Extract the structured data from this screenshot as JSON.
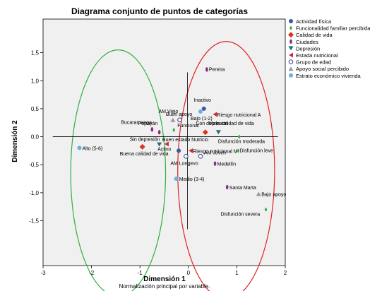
{
  "chart_data": {
    "type": "scatter",
    "title": "Diagrama conjunto de puntos de categorías",
    "xlabel": "Dimensión 1",
    "ylabel": "Dimensión 2",
    "note": "Normalización principal por variable.",
    "xlim": [
      -3,
      2
    ],
    "ylim": [
      -2.3,
      2.1
    ],
    "x_ticks": [
      "-3",
      "-2",
      "-1",
      "0",
      "1",
      "2"
    ],
    "y_ticks": [
      {
        "label": "1,5",
        "value": 1.5
      },
      {
        "label": "1,0",
        "value": 1.0
      },
      {
        "label": "0,5",
        "value": 0.5
      },
      {
        "label": "0,0",
        "value": 0.0
      },
      {
        "label": "-0,5",
        "value": -0.5
      },
      {
        "label": "-1,0",
        "value": -1.0
      },
      {
        "label": "-1,5",
        "value": -1.5
      }
    ],
    "legend_position": "right",
    "series": [
      {
        "name": "Actividad física",
        "marker": "circle",
        "color": "#3a5a9c",
        "points": [
          {
            "label": "Inactivo",
            "x": 0.32,
            "y": 0.5
          },
          {
            "label": "Activo",
            "x": -0.2,
            "y": -0.25
          }
        ]
      },
      {
        "name": "Funcionalidad familiar percibida",
        "marker": "diamond-small",
        "color": "#3aa040",
        "points": [
          {
            "label": "Funcional",
            "x": -0.3,
            "y": 0.12
          },
          {
            "label": "Disfunción moderada",
            "x": 1.05,
            "y": 0.0
          },
          {
            "label": "Disfunción leve",
            "x": 1.03,
            "y": -0.25
          },
          {
            "label": "Disfunción severa",
            "x": 1.6,
            "y": -1.3
          }
        ]
      },
      {
        "name": "Calidad de vida",
        "marker": "diamond",
        "color": "#e03020",
        "points": [
          {
            "label": "Buena calidad de vida",
            "x": -0.95,
            "y": -0.18
          },
          {
            "label": "Mala calidad de vida",
            "x": 0.35,
            "y": 0.08
          }
        ]
      },
      {
        "name": "Ciudades",
        "marker": "ellipse",
        "color": "#8a2a8a",
        "points": [
          {
            "label": "Pereira",
            "x": 0.38,
            "y": 1.2
          },
          {
            "label": "Bucaramanga",
            "x": -0.75,
            "y": 0.13
          },
          {
            "label": "Popayán",
            "x": -0.6,
            "y": 0.08
          },
          {
            "label": "Medellín",
            "x": 0.55,
            "y": -0.48
          },
          {
            "label": "Santa Marta",
            "x": 0.8,
            "y": -0.9
          }
        ]
      },
      {
        "name": "Depresión",
        "marker": "triangle-down",
        "color": "#1f6f7a",
        "points": [
          {
            "label": "Con depresión",
            "x": 0.62,
            "y": 0.08
          },
          {
            "label": "Sin depresión",
            "x": -0.6,
            "y": -0.14
          }
        ]
      },
      {
        "name": "Estada nutricional",
        "marker": "triangle-left",
        "color": "#d02838",
        "points": [
          {
            "label": "Riesgo nutricional A",
            "x": 0.55,
            "y": 0.4
          },
          {
            "label": "Buen estado Nutricio",
            "x": -0.45,
            "y": -0.13
          },
          {
            "label": "Riesgo nutricional M",
            "x": 0.05,
            "y": -0.25
          }
        ]
      },
      {
        "name": "Grupo de edad",
        "marker": "circle-open",
        "color": "#3a3a8a",
        "points": [
          {
            "label": "AM Viejo",
            "x": -0.18,
            "y": 0.3
          },
          {
            "label": "AM Joven",
            "x": 0.25,
            "y": -0.35
          },
          {
            "label": "AM Longevo",
            "x": -0.05,
            "y": -0.35
          }
        ]
      },
      {
        "name": "Apoyo social percibido",
        "marker": "triangle-up",
        "color": "#999999",
        "points": [
          {
            "label": "Buen apoyo",
            "x": -0.32,
            "y": 0.3
          },
          {
            "label": "Bajo apoyo",
            "x": 1.45,
            "y": -1.02
          }
        ]
      },
      {
        "name": "Estrato económico vivienda",
        "marker": "circle",
        "color": "#6aaee0",
        "points": [
          {
            "label": "Alto (5-6)",
            "x": -2.25,
            "y": -0.2
          },
          {
            "label": "Bajo (1-2)",
            "x": 0.25,
            "y": 0.45
          },
          {
            "label": "Medio (3-4)",
            "x": -0.25,
            "y": -0.75
          }
        ]
      }
    ],
    "ellipses": [
      {
        "color": "#30b040",
        "cx": -1.45,
        "cy": -0.65,
        "rx": 0.98,
        "ry": 2.2
      },
      {
        "color": "#e02020",
        "cx": 0.78,
        "cy": -0.6,
        "rx": 1.0,
        "ry": 2.3
      }
    ],
    "reference_lines": {
      "vline_x": -0.02,
      "vline_y": [
        1.15,
        -1.65
      ],
      "hline_y": 0.0,
      "hline_x": [
        -2.8,
        1.85
      ]
    }
  }
}
